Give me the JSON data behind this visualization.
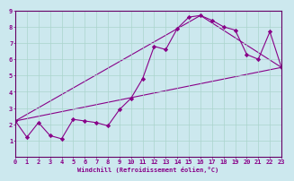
{
  "xlabel": "Windchill (Refroidissement éolien,°C)",
  "bg_color": "#cce8ee",
  "line_color": "#880088",
  "marker": "D",
  "marker_size": 2.2,
  "xlim": [
    0,
    23
  ],
  "ylim": [
    0,
    9
  ],
  "xticks": [
    0,
    1,
    2,
    3,
    4,
    5,
    6,
    7,
    8,
    9,
    10,
    11,
    12,
    13,
    14,
    15,
    16,
    17,
    18,
    19,
    20,
    21,
    22,
    23
  ],
  "yticks": [
    1,
    2,
    3,
    4,
    5,
    6,
    7,
    8,
    9
  ],
  "series1_x": [
    0,
    1,
    2,
    3,
    4,
    5,
    6,
    7,
    8,
    9,
    10,
    11,
    12,
    13,
    14,
    15,
    16,
    17,
    18,
    19,
    20,
    21,
    22,
    23
  ],
  "series1_y": [
    2.2,
    1.2,
    2.1,
    1.3,
    1.1,
    2.3,
    2.2,
    2.1,
    1.9,
    2.9,
    3.6,
    4.8,
    6.8,
    6.6,
    7.9,
    8.6,
    8.7,
    8.4,
    8.0,
    7.8,
    6.3,
    6.0,
    7.7,
    5.5
  ],
  "series2_x": [
    0,
    23
  ],
  "series2_y": [
    2.2,
    5.5
  ],
  "series3_x": [
    0,
    16,
    23
  ],
  "series3_y": [
    2.2,
    8.7,
    5.5
  ],
  "grid_color": "#aad4cc",
  "spine_color": "#660066",
  "tick_labelsize": 5.0
}
